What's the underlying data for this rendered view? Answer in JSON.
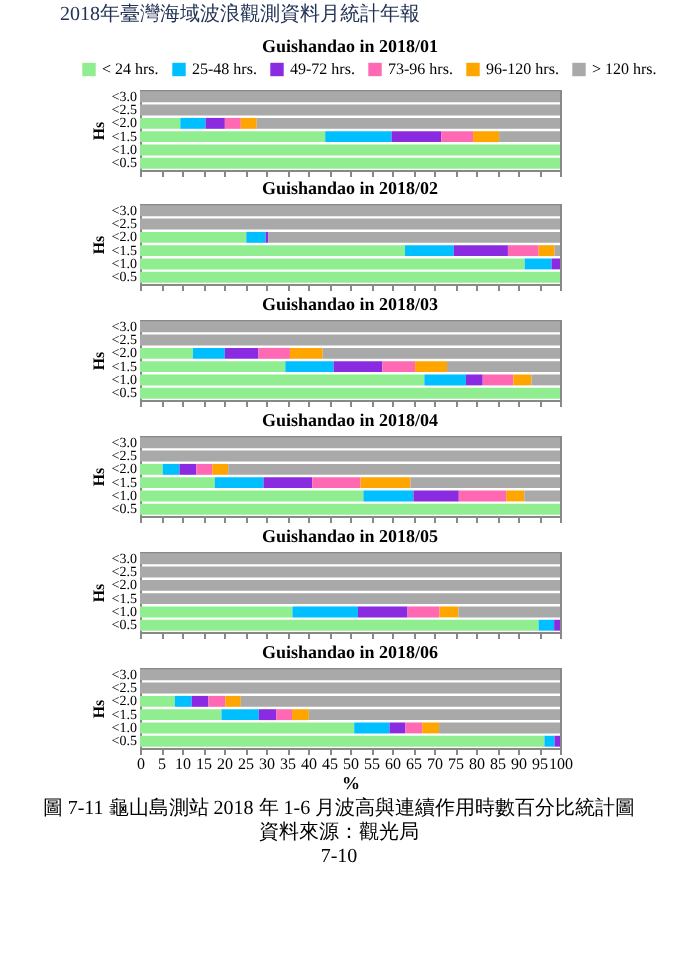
{
  "chart_data": [
    {
      "type": "bar",
      "orientation": "horizontal",
      "stacked": true,
      "title": "Guishandao in 2018/01",
      "ylabel": "Hs",
      "legend": "top",
      "tick_labels": "y",
      "xlim": [
        0,
        100
      ],
      "xticks": [
        0,
        5,
        10,
        15,
        20,
        25,
        30,
        35,
        40,
        45,
        50,
        55,
        60,
        65,
        70,
        75,
        80,
        85,
        90,
        95,
        100
      ],
      "annotations": [
        "2018年臺灣海域波浪觀測資料月統計年報"
      ],
      "categories": [
        "<3.0",
        "<2.5",
        "<2.0",
        "<1.5",
        "<1.0",
        "<0.5"
      ],
      "series": [
        {
          "name": "< 24 hrs.",
          "color": "#90ee90",
          "values": [
            null,
            null,
            9.6,
            44.1,
            100,
            100
          ]
        },
        {
          "name": "25-48 hrs.",
          "color": "#00bfff",
          "values": [
            null,
            null,
            6.0,
            15.8,
            null,
            null
          ]
        },
        {
          "name": "49-72 hrs.",
          "color": "#8a2be2",
          "values": [
            null,
            null,
            4.6,
            11.8,
            null,
            null
          ]
        },
        {
          "name": "73-96 hrs.",
          "color": "#ff69b4",
          "values": [
            null,
            null,
            3.8,
            7.6,
            null,
            null
          ]
        },
        {
          "name": "96-120 hrs.",
          "color": "#ffa500",
          "values": [
            null,
            null,
            3.8,
            6.2,
            null,
            null
          ]
        },
        {
          "name": "> 120 hrs.",
          "color": "#a9a9a9",
          "values": [
            100,
            100,
            72.2,
            14.5,
            null,
            null
          ]
        }
      ]
    },
    {
      "type": "bar",
      "orientation": "horizontal",
      "stacked": true,
      "title": "Guishandao in 2018/02",
      "ylabel": "Hs",
      "tick_labels": "y",
      "xlim": [
        0,
        100
      ],
      "xticks": [
        0,
        5,
        10,
        15,
        20,
        25,
        30,
        35,
        40,
        45,
        50,
        55,
        60,
        65,
        70,
        75,
        80,
        85,
        90,
        95,
        100
      ],
      "categories": [
        "<3.0",
        "<2.5",
        "<2.0",
        "<1.5",
        "<1.0",
        "<0.5"
      ],
      "series": [
        {
          "color": "#90ee90",
          "values": [
            null,
            null,
            25.3,
            63.1,
            91.6,
            100
          ]
        },
        {
          "color": "#00bfff",
          "values": [
            null,
            null,
            4.6,
            11.6,
            6.4,
            null
          ]
        },
        {
          "color": "#8a2be2",
          "values": [
            null,
            null,
            0.6,
            12.9,
            2.0,
            null
          ]
        },
        {
          "color": "#ff69b4",
          "values": [
            null,
            null,
            null,
            7.3,
            null,
            null
          ]
        },
        {
          "color": "#ffa500",
          "values": [
            null,
            null,
            null,
            3.8,
            null,
            null
          ]
        },
        {
          "color": "#a9a9a9",
          "values": [
            100,
            100,
            69.5,
            1.3,
            null,
            null
          ]
        }
      ]
    },
    {
      "type": "bar",
      "orientation": "horizontal",
      "stacked": true,
      "title": "Guishandao in 2018/03",
      "ylabel": "Hs",
      "tick_labels": "y",
      "xlim": [
        0,
        100
      ],
      "xticks": [
        0,
        5,
        10,
        15,
        20,
        25,
        30,
        35,
        40,
        45,
        50,
        55,
        60,
        65,
        70,
        75,
        80,
        85,
        90,
        95,
        100
      ],
      "categories": [
        "<3.0",
        "<2.5",
        "<2.0",
        "<1.5",
        "<1.0",
        "<0.5"
      ],
      "series": [
        {
          "color": "#90ee90",
          "values": [
            null,
            null,
            12.6,
            34.6,
            67.7,
            100
          ]
        },
        {
          "color": "#00bfff",
          "values": [
            null,
            null,
            7.6,
            11.5,
            9.9,
            null
          ]
        },
        {
          "color": "#8a2be2",
          "values": [
            null,
            null,
            8.0,
            11.6,
            4.0,
            null
          ]
        },
        {
          "color": "#ff69b4",
          "values": [
            null,
            null,
            7.5,
            7.8,
            7.3,
            null
          ]
        },
        {
          "color": "#ffa500",
          "values": [
            null,
            null,
            7.8,
            7.6,
            4.3,
            null
          ]
        },
        {
          "color": "#a9a9a9",
          "values": [
            100,
            100,
            56.5,
            26.9,
            6.8,
            null
          ]
        }
      ]
    },
    {
      "type": "bar",
      "orientation": "horizontal",
      "stacked": true,
      "title": "Guishandao in 2018/04",
      "ylabel": "Hs",
      "tick_labels": "y",
      "xlim": [
        0,
        100
      ],
      "xticks": [
        0,
        5,
        10,
        15,
        20,
        25,
        30,
        35,
        40,
        45,
        50,
        55,
        60,
        65,
        70,
        75,
        80,
        85,
        90,
        95,
        100
      ],
      "categories": [
        "<3.0",
        "<2.5",
        "<2.0",
        "<1.5",
        "<1.0",
        "<0.5"
      ],
      "series": [
        {
          "color": "#90ee90",
          "values": [
            null,
            null,
            5.4,
            17.8,
            53.2,
            100
          ]
        },
        {
          "color": "#00bfff",
          "values": [
            null,
            null,
            4.0,
            11.6,
            11.9,
            null
          ]
        },
        {
          "color": "#8a2be2",
          "values": [
            null,
            null,
            4.0,
            11.6,
            10.8,
            null
          ]
        },
        {
          "color": "#ff69b4",
          "values": [
            null,
            null,
            3.8,
            11.5,
            11.3,
            null
          ]
        },
        {
          "color": "#ffa500",
          "values": [
            null,
            null,
            3.8,
            11.9,
            4.3,
            null
          ]
        },
        {
          "color": "#a9a9a9",
          "values": [
            100,
            100,
            79.0,
            35.6,
            8.5,
            null
          ]
        }
      ]
    },
    {
      "type": "bar",
      "orientation": "horizontal",
      "stacked": true,
      "title": "Guishandao in 2018/05",
      "ylabel": "Hs",
      "tick_labels": "y",
      "xlim": [
        0,
        100
      ],
      "xticks": [
        0,
        5,
        10,
        15,
        20,
        25,
        30,
        35,
        40,
        45,
        50,
        55,
        60,
        65,
        70,
        75,
        80,
        85,
        90,
        95,
        100
      ],
      "categories": [
        "<3.0",
        "<2.5",
        "<2.0",
        "<1.5",
        "<1.0",
        "<0.5"
      ],
      "series": [
        {
          "color": "#90ee90",
          "values": [
            null,
            null,
            null,
            null,
            36.3,
            94.9
          ]
        },
        {
          "color": "#00bfff",
          "values": [
            null,
            null,
            null,
            null,
            15.6,
            3.7
          ]
        },
        {
          "color": "#8a2be2",
          "values": [
            null,
            null,
            null,
            null,
            11.8,
            1.4
          ]
        },
        {
          "color": "#ff69b4",
          "values": [
            null,
            null,
            null,
            null,
            7.6,
            null
          ]
        },
        {
          "color": "#ffa500",
          "values": [
            null,
            null,
            null,
            null,
            4.5,
            null
          ]
        },
        {
          "color": "#a9a9a9",
          "values": [
            100,
            100,
            100,
            100,
            24.2,
            null
          ]
        }
      ]
    },
    {
      "type": "bar",
      "orientation": "horizontal",
      "stacked": true,
      "title": "Guishandao in 2018/06",
      "ylabel": "Hs",
      "xlabel": "%",
      "xlim": [
        0,
        100
      ],
      "xticks": [
        0,
        5,
        10,
        15,
        20,
        25,
        30,
        35,
        40,
        45,
        50,
        55,
        60,
        65,
        70,
        75,
        80,
        85,
        90,
        95,
        100
      ],
      "annotations": [
        "圖 7-11 龜山島測站 2018 年 1-6 月波高與連續作用時數百分比統計圖",
        "資料來源：觀光局",
        "7-10"
      ],
      "categories": [
        "<3.0",
        "<2.5",
        "<2.0",
        "<1.5",
        "<1.0",
        "<0.5"
      ],
      "series": [
        {
          "color": "#90ee90",
          "values": [
            null,
            null,
            8.3,
            19.4,
            51.0,
            96.3
          ]
        },
        {
          "color": "#00bfff",
          "values": [
            null,
            null,
            4.0,
            8.9,
            8.4,
            2.4
          ]
        },
        {
          "color": "#8a2be2",
          "values": [
            null,
            null,
            4.0,
            4.1,
            3.8,
            1.3
          ]
        },
        {
          "color": "#ff69b4",
          "values": [
            null,
            null,
            4.0,
            3.8,
            4.0,
            null
          ]
        },
        {
          "color": "#ffa500",
          "values": [
            null,
            null,
            3.7,
            4.0,
            4.0,
            null
          ]
        },
        {
          "color": "#a9a9a9",
          "values": [
            100,
            100,
            76.0,
            59.8,
            28.8,
            null
          ]
        }
      ]
    }
  ]
}
